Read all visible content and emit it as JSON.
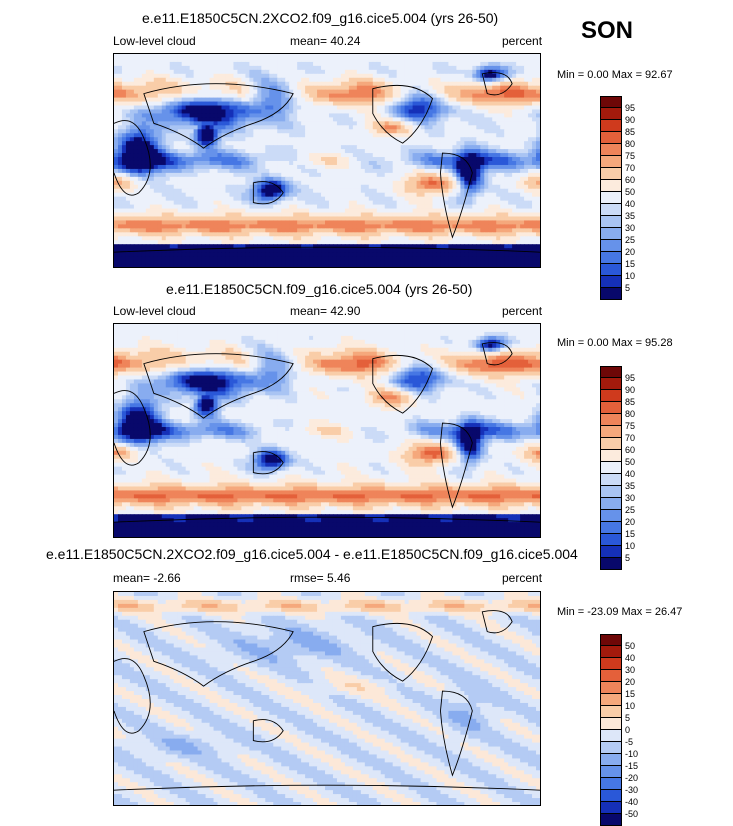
{
  "season": "SON",
  "panels": [
    {
      "title": "e.e11.E1850C5CN.2XCO2.f09_g16.cice5.004 (yrs 26-50)",
      "left_label": "Low-level cloud",
      "center_label": "mean=  40.24",
      "right_label": "percent",
      "minmax": "Min =   0.00 Max =  92.67"
    },
    {
      "title": "e.e11.E1850C5CN.f09_g16.cice5.004 (yrs 26-50)",
      "left_label": "Low-level cloud",
      "center_label": "mean=  42.90",
      "right_label": "percent",
      "minmax": "Min =   0.00 Max =  95.28"
    },
    {
      "title": "e.e11.E1850C5CN.2XCO2.f09_g16.cice5.004 - e.e11.E1850C5CN.f09_g16.cice5.004",
      "left_label": "mean=  -2.66",
      "center_label": "rmse=   5.46",
      "right_label": "percent",
      "minmax": "Min = -23.09 Max =  26.47"
    }
  ],
  "chart_data": [
    {
      "type": "heatmap",
      "title": "e.e11.E1850C5CN.2XCO2.f09_g16.cice5.004 (yrs 26-50)",
      "variable": "Low-level cloud",
      "units": "percent",
      "mean": 40.24,
      "min": 0.0,
      "max": 92.67,
      "levels": [
        5,
        10,
        15,
        20,
        25,
        30,
        35,
        40,
        50,
        60,
        70,
        75,
        80,
        85,
        90,
        95
      ],
      "colors": [
        "#08086b",
        "#1530b8",
        "#2a58d8",
        "#4677e4",
        "#6692ea",
        "#88acef",
        "#a9c4f3",
        "#cbdbf7",
        "#ecf1fb",
        "#fcebdd",
        "#f9cda8",
        "#f5a87c",
        "#ef845a",
        "#e4603a",
        "#cf3a1d",
        "#a31a0c",
        "#6e0707"
      ]
    },
    {
      "type": "heatmap",
      "title": "e.e11.E1850C5CN.f09_g16.cice5.004 (yrs 26-50)",
      "variable": "Low-level cloud",
      "units": "percent",
      "mean": 42.9,
      "min": 0.0,
      "max": 95.28,
      "levels": [
        5,
        10,
        15,
        20,
        25,
        30,
        35,
        40,
        50,
        60,
        70,
        75,
        80,
        85,
        90,
        95
      ],
      "colors": [
        "#08086b",
        "#1530b8",
        "#2a58d8",
        "#4677e4",
        "#6692ea",
        "#88acef",
        "#a9c4f3",
        "#cbdbf7",
        "#ecf1fb",
        "#fcebdd",
        "#f9cda8",
        "#f5a87c",
        "#ef845a",
        "#e4603a",
        "#cf3a1d",
        "#a31a0c",
        "#6e0707"
      ]
    },
    {
      "type": "heatmap",
      "title": "e.e11.E1850C5CN.2XCO2.f09_g16.cice5.004 - e.e11.E1850C5CN.f09_g16.cice5.004",
      "units": "percent",
      "mean": -2.66,
      "rmse": 5.46,
      "min": -23.09,
      "max": 26.47,
      "levels": [
        -50,
        -40,
        -30,
        -20,
        -15,
        -10,
        -5,
        0,
        5,
        10,
        15,
        20,
        30,
        40,
        50
      ],
      "colors": [
        "#08086b",
        "#1530b8",
        "#2a58d8",
        "#4677e4",
        "#6692ea",
        "#88acef",
        "#b4cbf4",
        "#dde7f9",
        "#fce8d8",
        "#f9cda8",
        "#f5a87c",
        "#ef845a",
        "#e4603a",
        "#cf3a1d",
        "#a31a0c",
        "#6e0707"
      ]
    }
  ]
}
